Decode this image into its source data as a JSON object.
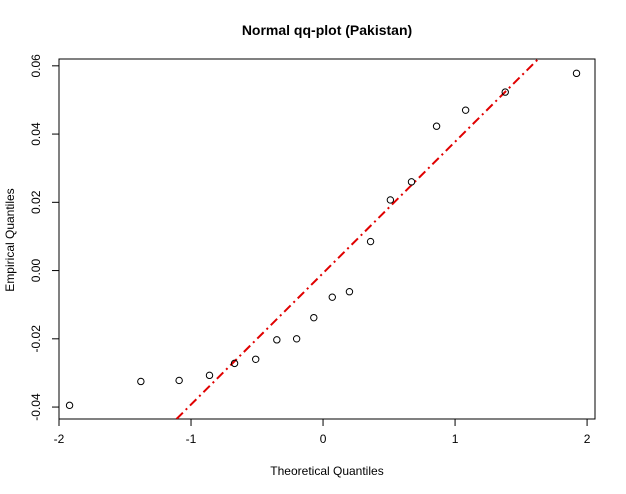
{
  "chart_data": {
    "type": "scatter",
    "title": "Normal qq-plot (Pakistan)",
    "xlabel": "Theoretical Quantiles",
    "ylabel": "Empirical Quantiles",
    "xlim": [
      -2.0,
      2.06
    ],
    "ylim": [
      -0.0435,
      0.062
    ],
    "xticks": [
      -2,
      -1,
      0,
      1,
      2
    ],
    "xtick_labels": [
      "-2",
      "-1",
      "0",
      "1",
      "2"
    ],
    "yticks": [
      -0.04,
      -0.02,
      0.0,
      0.02,
      0.04,
      0.06
    ],
    "ytick_labels": [
      "-0.04",
      "-0.02",
      "0.00",
      "0.02",
      "0.04",
      "0.06"
    ],
    "grid": false,
    "points": [
      {
        "x": -1.92,
        "y": -0.0395
      },
      {
        "x": -1.38,
        "y": -0.0325
      },
      {
        "x": -1.09,
        "y": -0.0322
      },
      {
        "x": -0.86,
        "y": -0.0307
      },
      {
        "x": -0.67,
        "y": -0.0272
      },
      {
        "x": -0.51,
        "y": -0.026
      },
      {
        "x": -0.35,
        "y": -0.0203
      },
      {
        "x": -0.2,
        "y": -0.02
      },
      {
        "x": -0.07,
        "y": -0.0138
      },
      {
        "x": 0.07,
        "y": -0.0078
      },
      {
        "x": 0.2,
        "y": -0.0062
      },
      {
        "x": 0.36,
        "y": 0.0085
      },
      {
        "x": 0.51,
        "y": 0.0207
      },
      {
        "x": 0.67,
        "y": 0.026
      },
      {
        "x": 0.86,
        "y": 0.0423
      },
      {
        "x": 1.08,
        "y": 0.047
      },
      {
        "x": 1.38,
        "y": 0.0523
      },
      {
        "x": 1.92,
        "y": 0.0578
      }
    ],
    "reference_line": {
      "x": [
        -1.11,
        1.63
      ],
      "y": [
        -0.0435,
        0.062
      ],
      "color": "#e00000",
      "style": "dash-dot"
    },
    "point_color": "#000000"
  }
}
